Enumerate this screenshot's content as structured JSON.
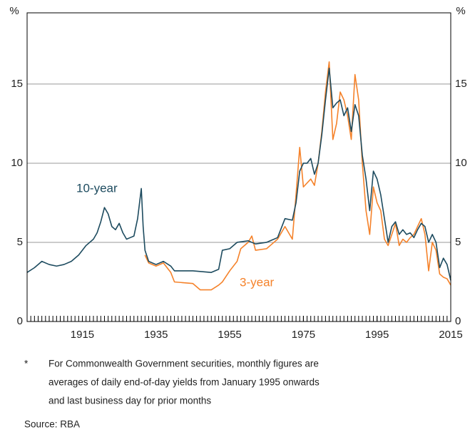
{
  "chart_data": {
    "type": "line",
    "y_unit": "%",
    "annotations": [
      "10-year",
      "3-year"
    ],
    "footnote_marker": "*",
    "footnote": [
      "For Commonwealth Government securities, monthly figures are",
      "averages of daily end-of-day yields from January 1995 onwards",
      "and last business day for prior months"
    ],
    "source": "Source:  RBA",
    "xlim": [
      1900,
      2015
    ],
    "xticks": [
      1915,
      1935,
      1955,
      1975,
      1995,
      2015
    ],
    "ylim": [
      0,
      19.5
    ],
    "yticks": [
      0,
      5,
      10,
      15
    ],
    "y2lim": [
      0,
      19.5
    ],
    "y2ticks": [
      0,
      5,
      10,
      15
    ],
    "grid": true,
    "series": [
      {
        "name": "10-year",
        "color": "#1d4b5f",
        "x": [
          1900,
          1902,
          1904,
          1906,
          1908,
          1910,
          1912,
          1914,
          1916,
          1918,
          1919,
          1920,
          1921,
          1922,
          1923,
          1924,
          1925,
          1926,
          1927,
          1928,
          1929,
          1930,
          1931,
          1931.5,
          1932,
          1933,
          1935,
          1937,
          1939,
          1940,
          1945,
          1950,
          1952,
          1953,
          1955,
          1957,
          1960,
          1962,
          1965,
          1968,
          1970,
          1972,
          1973,
          1974,
          1975,
          1976,
          1977,
          1978,
          1979,
          1980,
          1981,
          1982,
          1983,
          1984,
          1985,
          1986,
          1987,
          1988,
          1989,
          1990,
          1991,
          1992,
          1993,
          1994,
          1995,
          1996,
          1997,
          1998,
          1999,
          2000,
          2001,
          2002,
          2003,
          2004,
          2005,
          2006,
          2007,
          2008,
          2009,
          2010,
          2011,
          2012,
          2013,
          2014,
          2015
        ],
        "values": [
          3.1,
          3.4,
          3.8,
          3.6,
          3.5,
          3.6,
          3.8,
          4.2,
          4.8,
          5.2,
          5.6,
          6.3,
          7.2,
          6.8,
          6.0,
          5.8,
          6.2,
          5.6,
          5.2,
          5.3,
          5.4,
          6.5,
          8.4,
          6.0,
          4.5,
          3.8,
          3.6,
          3.8,
          3.5,
          3.2,
          3.2,
          3.1,
          3.3,
          4.5,
          4.6,
          5.0,
          5.1,
          4.9,
          5.0,
          5.3,
          6.5,
          6.4,
          7.5,
          9.5,
          10.0,
          10.0,
          10.3,
          9.3,
          10.0,
          11.8,
          14.0,
          16.0,
          13.5,
          13.8,
          14.0,
          13.0,
          13.5,
          12.0,
          13.7,
          13.0,
          10.5,
          9.0,
          7.0,
          9.5,
          9.0,
          8.0,
          6.5,
          5.0,
          6.0,
          6.3,
          5.5,
          5.8,
          5.5,
          5.6,
          5.3,
          5.8,
          6.2,
          6.0,
          5.0,
          5.5,
          5.0,
          3.4,
          4.0,
          3.6,
          2.6
        ]
      },
      {
        "name": "3-year",
        "color": "#f5822a",
        "x": [
          1932,
          1933,
          1935,
          1937,
          1939,
          1940,
          1945,
          1947,
          1950,
          1952,
          1953,
          1955,
          1957,
          1958,
          1960,
          1961,
          1962,
          1965,
          1968,
          1970,
          1972,
          1973,
          1974,
          1975,
          1977,
          1978,
          1979,
          1980,
          1981,
          1982,
          1983,
          1984,
          1985,
          1986,
          1987,
          1988,
          1989,
          1990,
          1991,
          1992,
          1993,
          1994,
          1995,
          1996,
          1997,
          1998,
          1999,
          2000,
          2001,
          2002,
          2003,
          2004,
          2005,
          2006,
          2007,
          2008,
          2009,
          2010,
          2011,
          2012,
          2013,
          2014,
          2015
        ],
        "values": [
          4.2,
          3.7,
          3.5,
          3.7,
          3.1,
          2.5,
          2.4,
          2.0,
          2.0,
          2.3,
          2.5,
          3.2,
          3.8,
          4.6,
          5.0,
          5.4,
          4.5,
          4.6,
          5.2,
          6.0,
          5.2,
          8.0,
          11.0,
          8.5,
          9.0,
          8.6,
          10.0,
          12.0,
          14.5,
          16.4,
          11.5,
          12.5,
          14.5,
          14.0,
          13.0,
          11.5,
          15.6,
          14.0,
          10.0,
          7.0,
          5.5,
          8.5,
          7.5,
          7.0,
          5.2,
          4.8,
          5.5,
          6.2,
          4.8,
          5.2,
          5.0,
          5.3,
          5.5,
          6.0,
          6.5,
          5.5,
          3.2,
          5.0,
          4.5,
          3.0,
          2.8,
          2.7,
          2.3
        ]
      }
    ]
  }
}
